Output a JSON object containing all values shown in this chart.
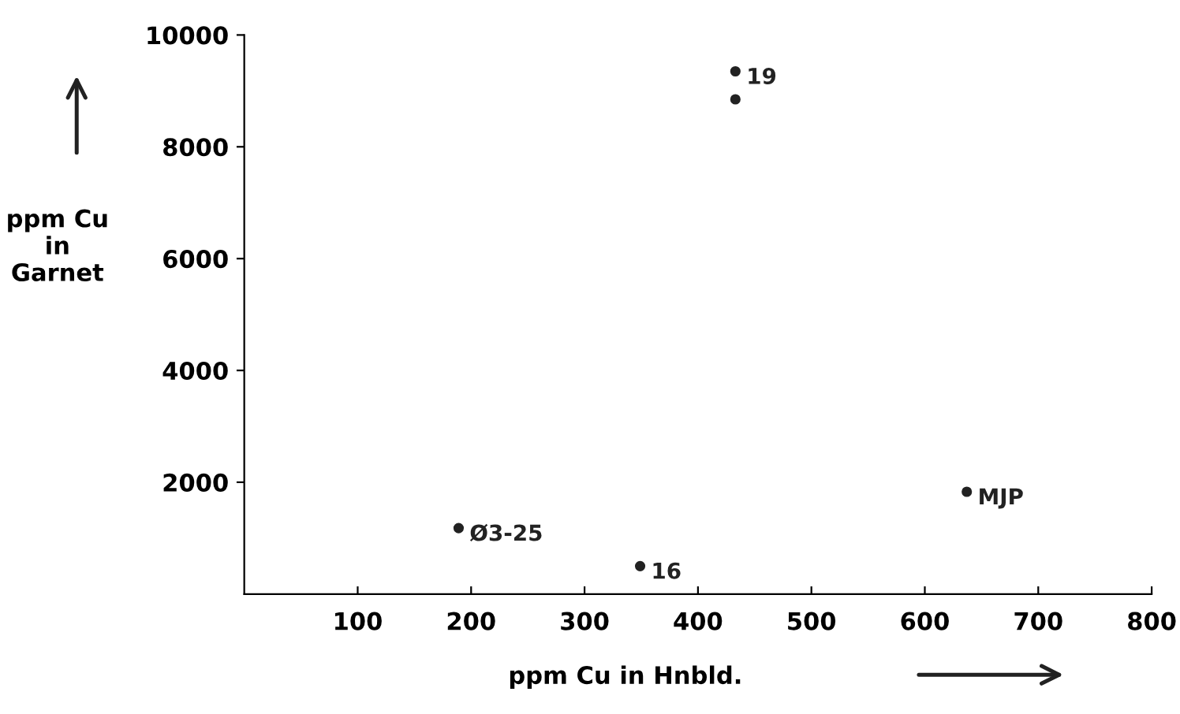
{
  "chart_data": {
    "type": "scatter",
    "xlabel": "ppm Cu in Hnbld.",
    "ylabel": "ppm Cu\nin\nGarnet",
    "x": [
      433,
      433,
      189,
      349,
      637
    ],
    "values": [
      9350,
      8850,
      1180,
      500,
      1830
    ],
    "annotations": [
      {
        "text": "19",
        "x": 433,
        "y": 9350
      },
      {
        "text": "Ø3-25",
        "x": 189,
        "y": 1180
      },
      {
        "text": "16",
        "x": 349,
        "y": 500
      },
      {
        "text": "MJP",
        "x": 637,
        "y": 1830
      }
    ],
    "color": "#222222",
    "marker": "circle",
    "grid": false,
    "xlim": [
      0,
      800
    ],
    "xticks": [
      100,
      200,
      300,
      400,
      500,
      600,
      700,
      800
    ],
    "ylim": [
      0,
      10000
    ],
    "yticks": [
      2000,
      4000,
      6000,
      8000,
      10000
    ]
  }
}
